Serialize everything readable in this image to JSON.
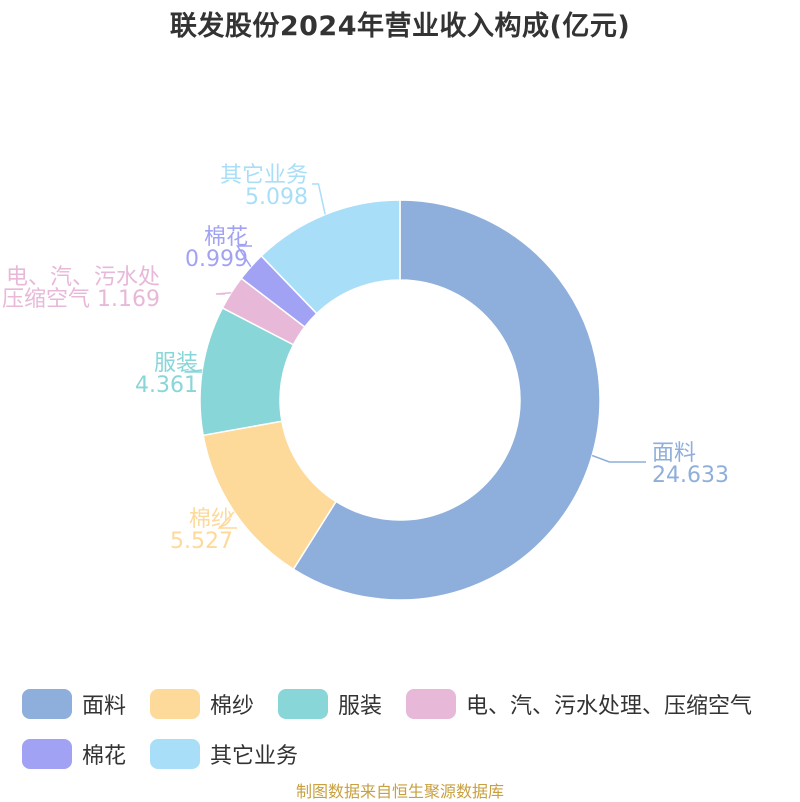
{
  "chart_data": {
    "type": "pie",
    "style": "donut",
    "title": "联发股份2024年营业收入构成(亿元)",
    "slices": [
      {
        "label": "面料",
        "label_lines": [
          "面料"
        ],
        "value": 24.633,
        "value_text": "24.633",
        "color": "#8eaedb"
      },
      {
        "label": "棉纱",
        "label_lines": [
          "棉纱"
        ],
        "value": 5.527,
        "value_text": "5.527",
        "color": "#fdd99a"
      },
      {
        "label": "服装",
        "label_lines": [
          "服装"
        ],
        "value": 4.361,
        "value_text": "4.361",
        "color": "#88d6d8"
      },
      {
        "label": "电、汽、污水处理、压缩空气",
        "label_lines": [
          "电、汽、污水处",
          "压缩空气"
        ],
        "value": 1.169,
        "value_text": "1.169",
        "color": "#e8b8d9"
      },
      {
        "label": "棉花",
        "label_lines": [
          "棉花"
        ],
        "value": 0.999,
        "value_text": "0.999",
        "color": "#a2a2f4"
      },
      {
        "label": "其它业务",
        "label_lines": [
          "其它业务"
        ],
        "value": 5.098,
        "value_text": "5.098",
        "color": "#a9def8"
      }
    ],
    "legend_position": "bottom"
  },
  "source_note": "制图数据来自恒生聚源数据库"
}
